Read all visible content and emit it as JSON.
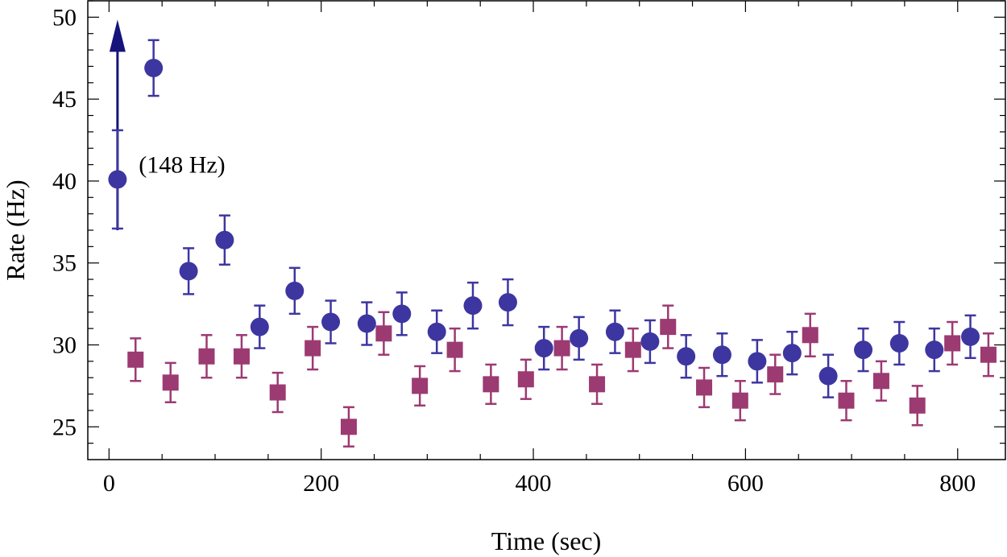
{
  "chart_data": {
    "type": "scatter",
    "title": "",
    "xlabel": "Time (sec)",
    "ylabel": "Rate (Hz)",
    "xlim": [
      -20,
      845
    ],
    "ylim": [
      23,
      51
    ],
    "xticks": [
      0,
      200,
      400,
      600,
      800
    ],
    "yticks": [
      25,
      30,
      35,
      40,
      45,
      50
    ],
    "grid": false,
    "series": [
      {
        "name": "circles",
        "marker": "circle",
        "color": "#3d36a0",
        "points": [
          {
            "x": 8,
            "y": 40.1,
            "err": 3.0
          },
          {
            "x": 42,
            "y": 46.9,
            "err": 1.7
          },
          {
            "x": 75,
            "y": 34.5,
            "err": 1.4
          },
          {
            "x": 109,
            "y": 36.4,
            "err": 1.5
          },
          {
            "x": 142,
            "y": 31.1,
            "err": 1.3
          },
          {
            "x": 175,
            "y": 33.3,
            "err": 1.4
          },
          {
            "x": 209,
            "y": 31.4,
            "err": 1.3
          },
          {
            "x": 243,
            "y": 31.3,
            "err": 1.3
          },
          {
            "x": 276,
            "y": 31.9,
            "err": 1.3
          },
          {
            "x": 309,
            "y": 30.8,
            "err": 1.3
          },
          {
            "x": 343,
            "y": 32.4,
            "err": 1.4
          },
          {
            "x": 376,
            "y": 32.6,
            "err": 1.4
          },
          {
            "x": 410,
            "y": 29.8,
            "err": 1.3
          },
          {
            "x": 443,
            "y": 30.4,
            "err": 1.3
          },
          {
            "x": 477,
            "y": 30.8,
            "err": 1.3
          },
          {
            "x": 510,
            "y": 30.2,
            "err": 1.3
          },
          {
            "x": 544,
            "y": 29.3,
            "err": 1.3
          },
          {
            "x": 578,
            "y": 29.4,
            "err": 1.3
          },
          {
            "x": 611,
            "y": 29.0,
            "err": 1.3
          },
          {
            "x": 644,
            "y": 29.5,
            "err": 1.3
          },
          {
            "x": 678,
            "y": 28.1,
            "err": 1.3
          },
          {
            "x": 711,
            "y": 29.7,
            "err": 1.3
          },
          {
            "x": 745,
            "y": 30.1,
            "err": 1.3
          },
          {
            "x": 778,
            "y": 29.7,
            "err": 1.3
          },
          {
            "x": 812,
            "y": 30.5,
            "err": 1.3
          }
        ]
      },
      {
        "name": "squares",
        "marker": "square",
        "color": "#9c3a72",
        "points": [
          {
            "x": 25,
            "y": 29.1,
            "err": 1.3
          },
          {
            "x": 58,
            "y": 27.7,
            "err": 1.2
          },
          {
            "x": 92,
            "y": 29.3,
            "err": 1.3
          },
          {
            "x": 125,
            "y": 29.3,
            "err": 1.3
          },
          {
            "x": 159,
            "y": 27.1,
            "err": 1.2
          },
          {
            "x": 192,
            "y": 29.8,
            "err": 1.3
          },
          {
            "x": 226,
            "y": 25.0,
            "err": 1.2
          },
          {
            "x": 259,
            "y": 30.7,
            "err": 1.3
          },
          {
            "x": 293,
            "y": 27.5,
            "err": 1.2
          },
          {
            "x": 326,
            "y": 29.7,
            "err": 1.3
          },
          {
            "x": 360,
            "y": 27.6,
            "err": 1.2
          },
          {
            "x": 393,
            "y": 27.9,
            "err": 1.2
          },
          {
            "x": 427,
            "y": 29.8,
            "err": 1.3
          },
          {
            "x": 460,
            "y": 27.6,
            "err": 1.2
          },
          {
            "x": 494,
            "y": 29.7,
            "err": 1.3
          },
          {
            "x": 527,
            "y": 31.1,
            "err": 1.3
          },
          {
            "x": 561,
            "y": 27.4,
            "err": 1.2
          },
          {
            "x": 595,
            "y": 26.6,
            "err": 1.2
          },
          {
            "x": 628,
            "y": 28.2,
            "err": 1.2
          },
          {
            "x": 661,
            "y": 30.6,
            "err": 1.3
          },
          {
            "x": 695,
            "y": 26.6,
            "err": 1.2
          },
          {
            "x": 728,
            "y": 27.8,
            "err": 1.2
          },
          {
            "x": 762,
            "y": 26.3,
            "err": 1.2
          },
          {
            "x": 795,
            "y": 30.1,
            "err": 1.3
          },
          {
            "x": 829,
            "y": 29.4,
            "err": 1.3
          }
        ]
      }
    ],
    "annotations": [
      {
        "text": "(148 Hz)",
        "x": 28,
        "y": 41,
        "arrow_x": 8,
        "arrow_from": 37,
        "arrow_to": 50,
        "color": "#16137a"
      }
    ]
  }
}
